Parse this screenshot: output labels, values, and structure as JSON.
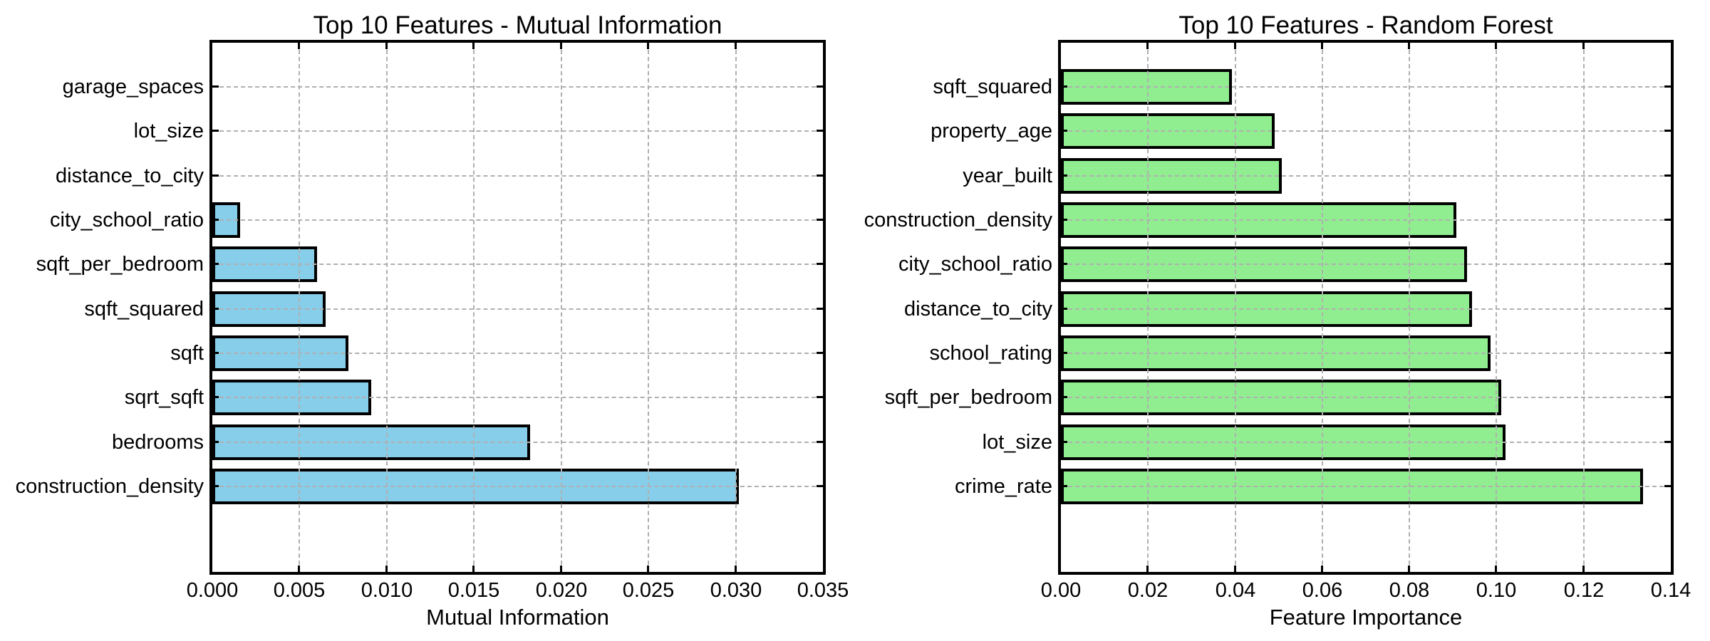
{
  "figure": {
    "background": "#ffffff",
    "text_color": "#000000",
    "grid_color": "#b0b0b0",
    "spine_color": "#000000"
  },
  "chart_data": [
    {
      "type": "bar",
      "orientation": "horizontal",
      "title": "Top 10 Features - Mutual Information",
      "xlabel": "Mutual Information",
      "ylabel": "",
      "order": "top_to_bottom",
      "categories": [
        "garage_spaces",
        "lot_size",
        "distance_to_city",
        "city_school_ratio",
        "sqft_per_bedroom",
        "sqft_squared",
        "sqft",
        "sqrt_sqft",
        "bedrooms",
        "construction_density"
      ],
      "values": [
        0.0,
        0.0,
        0.0,
        0.0016,
        0.006,
        0.0065,
        0.0078,
        0.0091,
        0.0182,
        0.0302
      ],
      "xlim": [
        0,
        0.035
      ],
      "xtick_labels": [
        "0.000",
        "0.005",
        "0.010",
        "0.015",
        "0.020",
        "0.025",
        "0.030",
        "0.035"
      ],
      "grid": true,
      "legend": null,
      "bar_color": "#87CEEB",
      "bar_edge_color": "#000000"
    },
    {
      "type": "bar",
      "orientation": "horizontal",
      "title": "Top 10 Features - Random Forest",
      "xlabel": "Feature Importance",
      "ylabel": "",
      "order": "top_to_bottom",
      "categories": [
        "sqft_squared",
        "property_age",
        "year_built",
        "construction_density",
        "city_school_ratio",
        "distance_to_city",
        "school_rating",
        "sqft_per_bedroom",
        "lot_size",
        "crime_rate"
      ],
      "values": [
        0.0392,
        0.049,
        0.0507,
        0.0907,
        0.0933,
        0.0943,
        0.0986,
        0.101,
        0.102,
        0.1336
      ],
      "xlim": [
        0,
        0.14
      ],
      "xtick_labels": [
        "0.00",
        "0.02",
        "0.04",
        "0.06",
        "0.08",
        "0.10",
        "0.12",
        "0.14"
      ],
      "grid": true,
      "legend": null,
      "bar_color": "#90EE90",
      "bar_edge_color": "#000000"
    }
  ]
}
